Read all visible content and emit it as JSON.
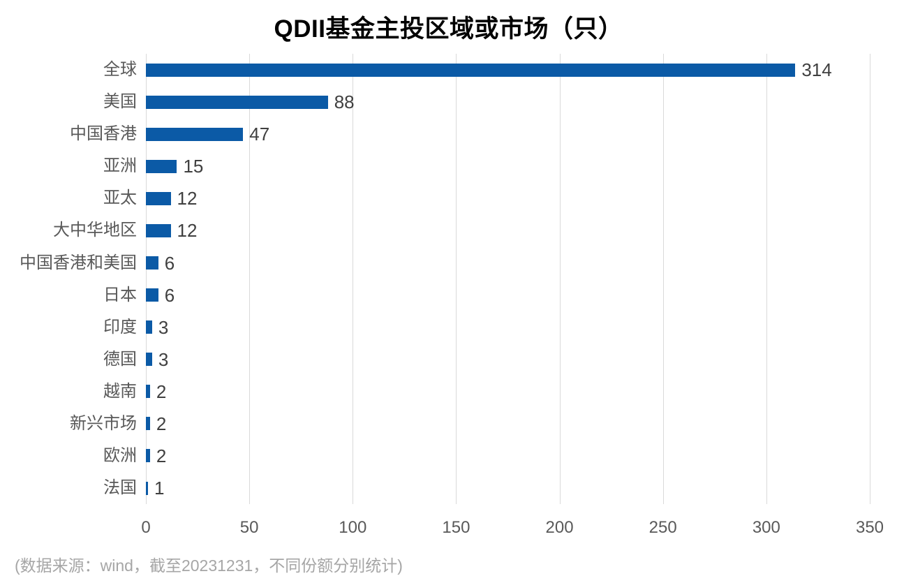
{
  "page": {
    "title": "QDII基金主投区域或市场（只）",
    "source_note": "(数据来源：wind，截至20231231，不同份额分别统计)"
  },
  "chart_data": {
    "type": "bar",
    "orientation": "horizontal",
    "title": "QDII基金主投区域或市场（只）",
    "categories": [
      "全球",
      "美国",
      "中国香港",
      "亚洲",
      "亚太",
      "大中华地区",
      "中国香港和美国",
      "日本",
      "印度",
      "德国",
      "越南",
      "新兴市场",
      "欧洲",
      "法国"
    ],
    "values": [
      314,
      88,
      47,
      15,
      12,
      12,
      6,
      6,
      3,
      3,
      2,
      2,
      2,
      1
    ],
    "xlabel": "",
    "ylabel": "",
    "xlim": [
      0,
      350
    ],
    "xticks": [
      0,
      50,
      100,
      150,
      200,
      250,
      300,
      350
    ],
    "grid": "vertical-only",
    "legend": "none",
    "data_labels": true,
    "annotation": "(数据来源：wind，截至20231231，不同份额分别统计)",
    "colors": {
      "bar": "#0b5aa6",
      "gridline": "#d9d9d9",
      "axis_label": "#595959",
      "value_label": "#404040",
      "source_note": "#a6a6a6",
      "title": "#000000"
    }
  }
}
